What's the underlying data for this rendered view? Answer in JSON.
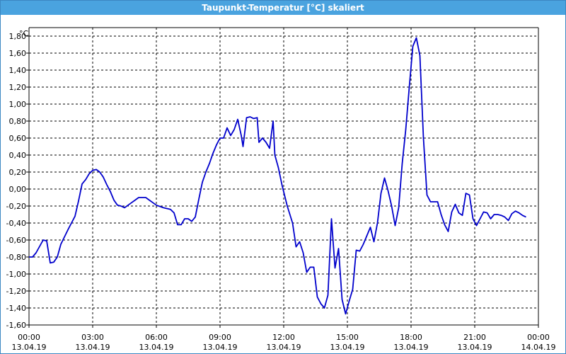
{
  "window": {
    "title": "Taupunkt-Temperatur [°C] skaliert"
  },
  "colors": {
    "titlebar": "#4aa3df",
    "series": "#0000cc",
    "grid": "#000000"
  },
  "chart_data": {
    "type": "line",
    "ylabel": "°C",
    "ylim": [
      -1.6,
      1.9
    ],
    "grid": true,
    "y_ticks": [
      {
        "value": 1.8,
        "label": "1,80"
      },
      {
        "value": 1.6,
        "label": "1,60"
      },
      {
        "value": 1.4,
        "label": "1,40"
      },
      {
        "value": 1.2,
        "label": "1,20"
      },
      {
        "value": 1.0,
        "label": "1,00"
      },
      {
        "value": 0.8,
        "label": "0,80"
      },
      {
        "value": 0.6,
        "label": "0,60"
      },
      {
        "value": 0.4,
        "label": "0,40"
      },
      {
        "value": 0.2,
        "label": "0,20"
      },
      {
        "value": 0.0,
        "label": "0,00"
      },
      {
        "value": -0.2,
        "label": "-0,20"
      },
      {
        "value": -0.4,
        "label": "-0,40"
      },
      {
        "value": -0.6,
        "label": "-0,60"
      },
      {
        "value": -0.8,
        "label": "-0,80"
      },
      {
        "value": -1.0,
        "label": "-1,00"
      },
      {
        "value": -1.2,
        "label": "-1,20"
      },
      {
        "value": -1.4,
        "label": "-1,40"
      },
      {
        "value": -1.6,
        "label": "-1,60"
      }
    ],
    "x_ticks": [
      {
        "time": "00:00",
        "date": "13.04.19"
      },
      {
        "time": "03:00",
        "date": "13.04.19"
      },
      {
        "time": "06:00",
        "date": "13.04.19"
      },
      {
        "time": "09:00",
        "date": "13.04.19"
      },
      {
        "time": "12:00",
        "date": "13.04.19"
      },
      {
        "time": "15:00",
        "date": "13.04.19"
      },
      {
        "time": "18:00",
        "date": "13.04.19"
      },
      {
        "time": "21:00",
        "date": "13.04.19"
      },
      {
        "time": "00:00",
        "date": "14.04.19"
      }
    ],
    "xlim": [
      "13.04.19 00:00",
      "14.04.19 00:00"
    ],
    "series": [
      {
        "points": [
          [
            "13.04.19 00:00",
            -0.8
          ],
          [
            "13.04.19 00:10",
            -0.8
          ],
          [
            "13.04.19 00:20",
            -0.75
          ],
          [
            "13.04.19 00:40",
            -0.6
          ],
          [
            "13.04.19 00:50",
            -0.61
          ],
          [
            "13.04.19 01:00",
            -0.87
          ],
          [
            "13.04.19 01:10",
            -0.86
          ],
          [
            "13.04.19 01:20",
            -0.8
          ],
          [
            "13.04.19 01:30",
            -0.65
          ],
          [
            "13.04.19 01:50",
            -0.48
          ],
          [
            "13.04.19 02:00",
            -0.4
          ],
          [
            "13.04.19 02:10",
            -0.32
          ],
          [
            "13.04.19 02:20",
            -0.14
          ],
          [
            "13.04.19 02:30",
            0.06
          ],
          [
            "13.04.19 02:40",
            0.11
          ],
          [
            "13.04.19 02:50",
            0.18
          ],
          [
            "13.04.19 03:00",
            0.22
          ],
          [
            "13.04.19 03:10",
            0.23
          ],
          [
            "13.04.19 03:20",
            0.2
          ],
          [
            "13.04.19 03:30",
            0.14
          ],
          [
            "13.04.19 03:40",
            0.05
          ],
          [
            "13.04.19 03:50",
            -0.03
          ],
          [
            "13.04.19 04:00",
            -0.13
          ],
          [
            "13.04.19 04:10",
            -0.19
          ],
          [
            "13.04.19 04:20",
            -0.2
          ],
          [
            "13.04.19 04:30",
            -0.22
          ],
          [
            "13.04.19 04:40",
            -0.19
          ],
          [
            "13.04.19 04:50",
            -0.16
          ],
          [
            "13.04.19 05:00",
            -0.13
          ],
          [
            "13.04.19 05:10",
            -0.1
          ],
          [
            "13.04.19 05:30",
            -0.1
          ],
          [
            "13.04.19 05:40",
            -0.13
          ],
          [
            "13.04.19 05:50",
            -0.16
          ],
          [
            "13.04.19 06:00",
            -0.19
          ],
          [
            "13.04.19 06:20",
            -0.22
          ],
          [
            "13.04.19 06:40",
            -0.24
          ],
          [
            "13.04.19 06:50",
            -0.28
          ],
          [
            "13.04.19 07:00",
            -0.42
          ],
          [
            "13.04.19 07:10",
            -0.42
          ],
          [
            "13.04.19 07:20",
            -0.35
          ],
          [
            "13.04.19 07:30",
            -0.35
          ],
          [
            "13.04.19 07:40",
            -0.38
          ],
          [
            "13.04.19 07:50",
            -0.33
          ],
          [
            "13.04.19 08:00",
            -0.12
          ],
          [
            "13.04.19 08:10",
            0.08
          ],
          [
            "13.04.19 08:20",
            0.2
          ],
          [
            "13.04.19 08:30",
            0.3
          ],
          [
            "13.04.19 08:40",
            0.42
          ],
          [
            "13.04.19 08:50",
            0.52
          ],
          [
            "13.04.19 09:00",
            0.6
          ],
          [
            "13.04.19 09:10",
            0.6
          ],
          [
            "13.04.19 09:20",
            0.72
          ],
          [
            "13.04.19 09:30",
            0.63
          ],
          [
            "13.04.19 09:40",
            0.7
          ],
          [
            "13.04.19 09:50",
            0.82
          ],
          [
            "13.04.19 10:00",
            0.63
          ],
          [
            "13.04.19 10:05",
            0.5
          ],
          [
            "13.04.19 10:15",
            0.84
          ],
          [
            "13.04.19 10:25",
            0.85
          ],
          [
            "13.04.19 10:35",
            0.83
          ],
          [
            "13.04.19 10:45",
            0.84
          ],
          [
            "13.04.19 10:50",
            0.55
          ],
          [
            "13.04.19 11:00",
            0.6
          ],
          [
            "13.04.19 11:10",
            0.55
          ],
          [
            "13.04.19 11:20",
            0.48
          ],
          [
            "13.04.19 11:30",
            0.8
          ],
          [
            "13.04.19 11:35",
            0.4
          ],
          [
            "13.04.19 11:45",
            0.25
          ],
          [
            "13.04.19 11:55",
            0.05
          ],
          [
            "13.04.19 12:10",
            -0.2
          ],
          [
            "13.04.19 12:25",
            -0.4
          ],
          [
            "13.04.19 12:35",
            -0.68
          ],
          [
            "13.04.19 12:45",
            -0.62
          ],
          [
            "13.04.19 12:55",
            -0.75
          ],
          [
            "13.04.19 13:05",
            -0.98
          ],
          [
            "13.04.19 13:15",
            -0.92
          ],
          [
            "13.04.19 13:25",
            -0.92
          ],
          [
            "13.04.19 13:35",
            -1.27
          ],
          [
            "13.04.19 13:45",
            -1.35
          ],
          [
            "13.04.19 13:55",
            -1.4
          ],
          [
            "13.04.19 14:05",
            -1.25
          ],
          [
            "13.04.19 14:15",
            -0.35
          ],
          [
            "13.04.19 14:25",
            -0.93
          ],
          [
            "13.04.19 14:35",
            -0.7
          ],
          [
            "13.04.19 14:45",
            -1.3
          ],
          [
            "13.04.19 14:55",
            -1.47
          ],
          [
            "13.04.19 15:05",
            -1.32
          ],
          [
            "13.04.19 15:15",
            -1.18
          ],
          [
            "13.04.19 15:25",
            -0.72
          ],
          [
            "13.04.19 15:35",
            -0.73
          ],
          [
            "13.04.19 15:45",
            -0.65
          ],
          [
            "13.04.19 15:55",
            -0.55
          ],
          [
            "13.04.19 16:05",
            -0.45
          ],
          [
            "13.04.19 16:15",
            -0.62
          ],
          [
            "13.04.19 16:25",
            -0.4
          ],
          [
            "13.04.19 16:35",
            -0.05
          ],
          [
            "13.04.19 16:45",
            0.13
          ],
          [
            "13.04.19 16:55",
            -0.02
          ],
          [
            "13.04.19 17:05",
            -0.2
          ],
          [
            "13.04.19 17:15",
            -0.43
          ],
          [
            "13.04.19 17:25",
            -0.22
          ],
          [
            "13.04.19 17:35",
            0.3
          ],
          [
            "13.04.19 17:45",
            0.7
          ],
          [
            "13.04.19 17:55",
            1.2
          ],
          [
            "13.04.19 18:05",
            1.68
          ],
          [
            "13.04.19 18:15",
            1.78
          ],
          [
            "13.04.19 18:25",
            1.57
          ],
          [
            "13.04.19 18:35",
            0.6
          ],
          [
            "13.04.19 18:45",
            -0.07
          ],
          [
            "13.04.19 18:55",
            -0.15
          ],
          [
            "13.04.19 19:15",
            -0.15
          ],
          [
            "13.04.19 19:25",
            -0.3
          ],
          [
            "13.04.19 19:35",
            -0.42
          ],
          [
            "13.04.19 19:45",
            -0.5
          ],
          [
            "13.04.19 19:55",
            -0.27
          ],
          [
            "13.04.19 20:05",
            -0.18
          ],
          [
            "13.04.19 20:15",
            -0.28
          ],
          [
            "13.04.19 20:25",
            -0.31
          ],
          [
            "13.04.19 20:35",
            -0.05
          ],
          [
            "13.04.19 20:45",
            -0.07
          ],
          [
            "13.04.19 20:55",
            -0.35
          ],
          [
            "13.04.19 21:05",
            -0.43
          ],
          [
            "13.04.19 21:15",
            -0.35
          ],
          [
            "13.04.19 21:25",
            -0.27
          ],
          [
            "13.04.19 21:35",
            -0.28
          ],
          [
            "13.04.19 21:45",
            -0.35
          ],
          [
            "13.04.19 21:55",
            -0.3
          ],
          [
            "13.04.19 22:05",
            -0.3
          ],
          [
            "13.04.19 22:15",
            -0.31
          ],
          [
            "13.04.19 22:25",
            -0.33
          ],
          [
            "13.04.19 22:35",
            -0.37
          ],
          [
            "13.04.19 22:45",
            -0.29
          ],
          [
            "13.04.19 22:55",
            -0.26
          ],
          [
            "13.04.19 23:05",
            -0.28
          ],
          [
            "13.04.19 23:15",
            -0.31
          ],
          [
            "13.04.19 23:25",
            -0.33
          ]
        ]
      }
    ]
  }
}
